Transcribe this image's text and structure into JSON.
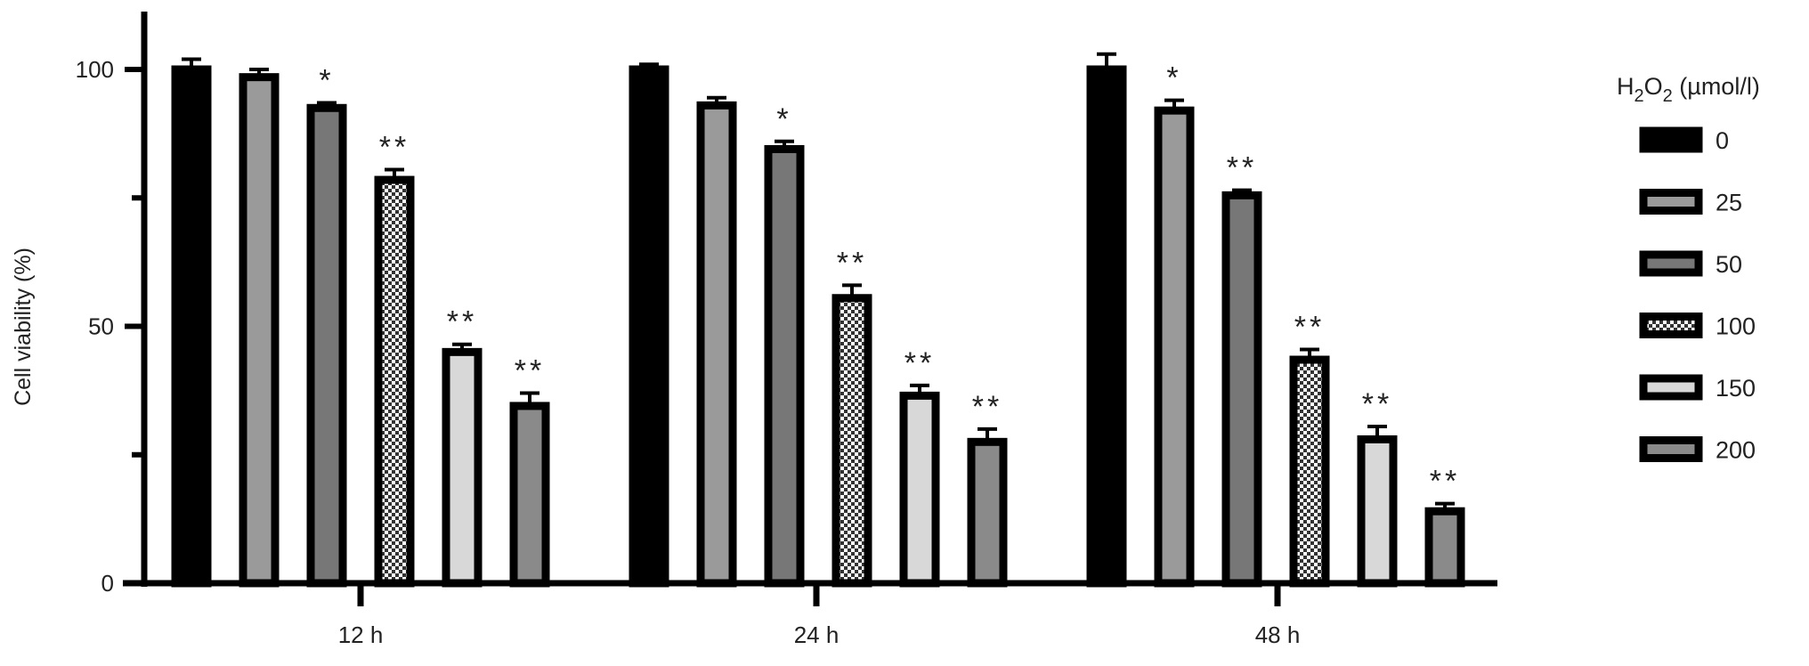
{
  "chart_data": {
    "type": "bar",
    "title": "",
    "xlabel": "",
    "ylabel": "Cell viability (%)",
    "ylim": [
      0,
      110
    ],
    "yticks": [
      0,
      50,
      100
    ],
    "yticks_minor": [
      25,
      75
    ],
    "categories": [
      "12 h",
      "24 h",
      "48 h"
    ],
    "legend": {
      "title_main": "H",
      "title_sub1": "2",
      "title_mid": "O",
      "title_sub2": "2",
      "title_unit": " (µmol/l)",
      "placement": "right"
    },
    "series": [
      {
        "name": "0",
        "fill": "#000000",
        "pattern": "solid",
        "values": [
          100,
          100,
          100
        ],
        "errors": [
          2,
          1,
          3
        ],
        "significance": [
          "",
          "",
          ""
        ]
      },
      {
        "name": "25",
        "fill": "#9a9a9a",
        "pattern": "solid",
        "values": [
          98.5,
          93,
          92
        ],
        "errors": [
          1.5,
          1.5,
          2
        ],
        "significance": [
          "",
          "",
          "*"
        ]
      },
      {
        "name": "50",
        "fill": "#777777",
        "pattern": "solid",
        "values": [
          92.5,
          84.5,
          75.5
        ],
        "errors": [
          1,
          1.5,
          1
        ],
        "significance": [
          "*",
          "*",
          "**"
        ]
      },
      {
        "name": "100",
        "fill": "#ffffff",
        "pattern": "checker",
        "values": [
          78.5,
          55.5,
          43.5
        ],
        "errors": [
          2,
          2.5,
          2
        ],
        "significance": [
          "**",
          "**",
          "**"
        ]
      },
      {
        "name": "150",
        "fill": "#d8d8d8",
        "pattern": "solid",
        "values": [
          45,
          36.5,
          28
        ],
        "errors": [
          1.5,
          2,
          2.5
        ],
        "significance": [
          "**",
          "**",
          "**"
        ]
      },
      {
        "name": "200",
        "fill": "#8a8a8a",
        "pattern": "solid",
        "values": [
          34.5,
          27.5,
          14
        ],
        "errors": [
          2.5,
          2.5,
          1.5
        ],
        "significance": [
          "**",
          "**",
          "**"
        ]
      }
    ]
  }
}
